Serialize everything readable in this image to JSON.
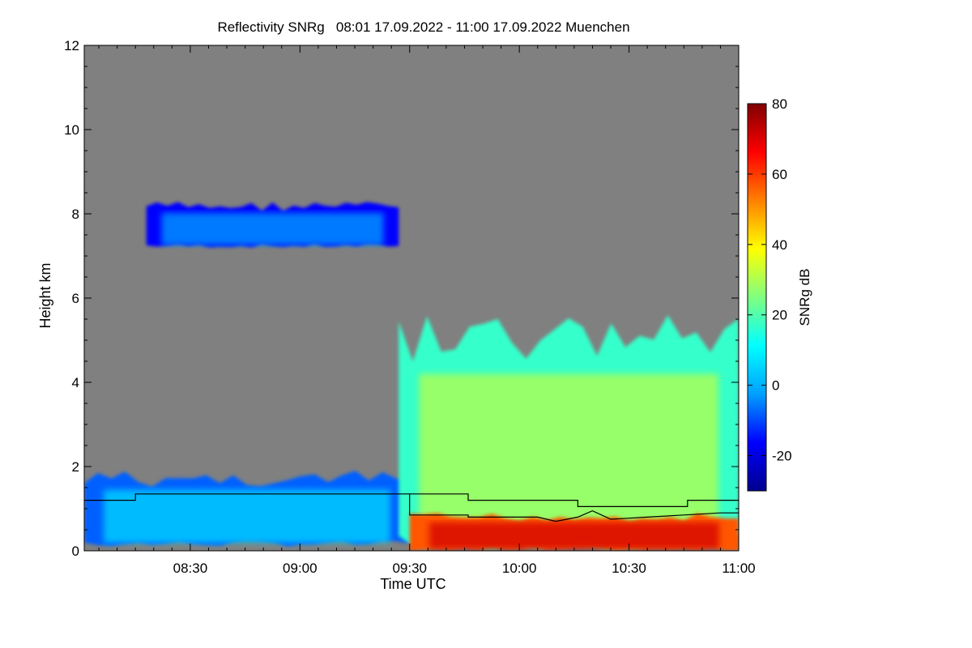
{
  "chart_data": {
    "type": "heatmap",
    "title": "Reflectivity SNRg   08:01 17.09.2022 - 11:00 17.09.2022 Muenchen",
    "xlabel": "Time UTC",
    "ylabel": "Height km",
    "colorbar_label": "SNRg dB",
    "x_range": [
      "08:01",
      "11:00"
    ],
    "x_ticks": [
      "08:30",
      "09:00",
      "09:30",
      "10:00",
      "10:30",
      "11:00"
    ],
    "ylim": [
      0,
      12
    ],
    "y_ticks": [
      "0",
      "2",
      "4",
      "6",
      "8",
      "10",
      "12"
    ],
    "colorbar_range": [
      -30,
      80
    ],
    "colorbar_ticks": [
      "-20",
      "0",
      "20",
      "40",
      "60",
      "80"
    ],
    "no_data_color": "#808080",
    "colormap": [
      "#00008f",
      "#0000ff",
      "#00a0ff",
      "#00ffff",
      "#80ff80",
      "#ffff00",
      "#ff8000",
      "#ff0000",
      "#800000"
    ],
    "layers": [
      {
        "name": "upper-cloud",
        "time_start": "08:18",
        "time_end": "09:27",
        "base_km": 7.2,
        "top_km": 8.3,
        "snr_db": -8
      },
      {
        "name": "low-cloud",
        "time_start": "08:01",
        "time_end": "09:30",
        "base_km": 0.1,
        "top_km": 1.9,
        "snr_db": 0
      },
      {
        "name": "deep-cloud",
        "time_start": "09:27",
        "time_end": "11:00",
        "base_km": 0.0,
        "top_km": 5.6,
        "snr_db": 25
      },
      {
        "name": "near-surface-rain",
        "time_start": "09:30",
        "time_end": "11:00",
        "base_km": 0.0,
        "top_km": 0.9,
        "snr_db": 65
      }
    ],
    "lines": [
      {
        "name": "boundary-upper",
        "color": "#000000",
        "points": [
          [
            "08:01",
            1.2
          ],
          [
            "08:15",
            1.2
          ],
          [
            "08:15",
            1.35
          ],
          [
            "09:46",
            1.35
          ],
          [
            "09:46",
            1.2
          ],
          [
            "10:16",
            1.2
          ],
          [
            "10:16",
            1.05
          ],
          [
            "10:46",
            1.05
          ],
          [
            "10:46",
            1.2
          ],
          [
            "11:00",
            1.2
          ]
        ]
      },
      {
        "name": "boundary-lower",
        "color": "#000000",
        "points": [
          [
            "09:30",
            1.35
          ],
          [
            "09:30",
            0.85
          ],
          [
            "09:46",
            0.85
          ],
          [
            "09:46",
            0.8
          ],
          [
            "10:05",
            0.8
          ],
          [
            "10:10",
            0.7
          ],
          [
            "10:16",
            0.8
          ],
          [
            "10:20",
            0.95
          ],
          [
            "10:25",
            0.75
          ],
          [
            "10:35",
            0.8
          ],
          [
            "10:45",
            0.85
          ],
          [
            "10:55",
            0.9
          ],
          [
            "11:00",
            0.9
          ]
        ]
      }
    ]
  }
}
